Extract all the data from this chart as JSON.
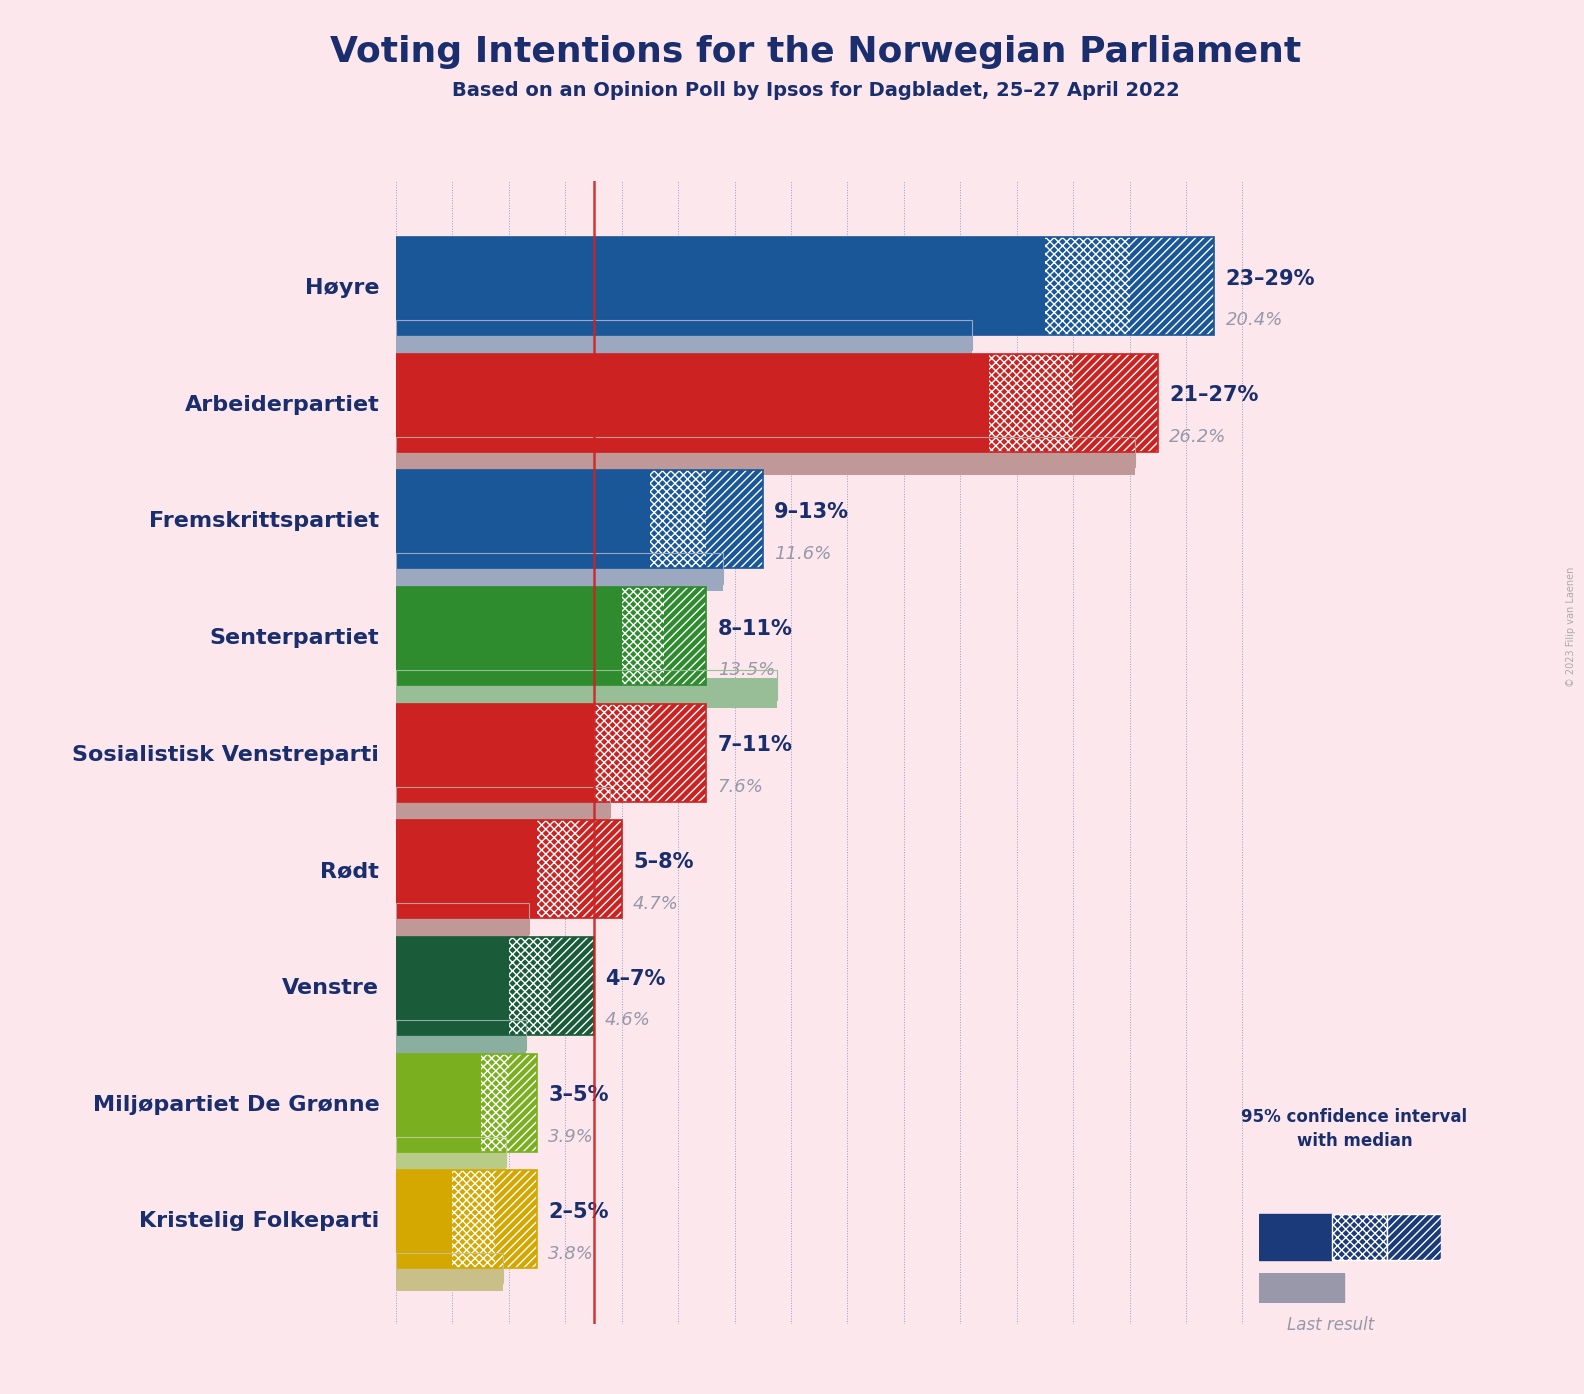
{
  "title": "Voting Intentions for the Norwegian Parliament",
  "subtitle": "Based on an Opinion Poll by Ipsos for Dagbladet, 25–27 April 2022",
  "copyright": "© 2023 Filip van Laenen",
  "background_color": "#fce8ec",
  "title_color": "#1a2e6e",
  "subtitle_color": "#1a2e6e",
  "parties": [
    {
      "name": "Høyre",
      "ci_low": 23,
      "median": 26,
      "ci_high": 29,
      "last_result": 20.4,
      "label": "23–29%",
      "last_label": "20.4%",
      "color": "#1a5799",
      "last_color": "#9ba8c0"
    },
    {
      "name": "Arbeiderpartiet",
      "ci_low": 21,
      "median": 24,
      "ci_high": 27,
      "last_result": 26.2,
      "label": "21–27%",
      "last_label": "26.2%",
      "color": "#cc2222",
      "last_color": "#c09898"
    },
    {
      "name": "Fremskrittspartiet",
      "ci_low": 9,
      "median": 11,
      "ci_high": 13,
      "last_result": 11.6,
      "label": "9–13%",
      "last_label": "11.6%",
      "color": "#1a5799",
      "last_color": "#9ba8c0"
    },
    {
      "name": "Senterpartiet",
      "ci_low": 8,
      "median": 9.5,
      "ci_high": 11,
      "last_result": 13.5,
      "label": "8–11%",
      "last_label": "13.5%",
      "color": "#2e8b2e",
      "last_color": "#98be98"
    },
    {
      "name": "Sosialistisk Venstreparti",
      "ci_low": 7,
      "median": 9,
      "ci_high": 11,
      "last_result": 7.6,
      "label": "7–11%",
      "last_label": "7.6%",
      "color": "#cc2222",
      "last_color": "#c09898"
    },
    {
      "name": "Rødt",
      "ci_low": 5,
      "median": 6.5,
      "ci_high": 8,
      "last_result": 4.7,
      "label": "5–8%",
      "last_label": "4.7%",
      "color": "#cc2222",
      "last_color": "#c09898"
    },
    {
      "name": "Venstre",
      "ci_low": 4,
      "median": 5.5,
      "ci_high": 7,
      "last_result": 4.6,
      "label": "4–7%",
      "last_label": "4.6%",
      "color": "#1a5c3a",
      "last_color": "#8aafa0"
    },
    {
      "name": "Miljøpartiet De Grønne",
      "ci_low": 3,
      "median": 4,
      "ci_high": 5,
      "last_result": 3.9,
      "label": "3–5%",
      "last_label": "3.9%",
      "color": "#7ab020",
      "last_color": "#b8cc88"
    },
    {
      "name": "Kristelig Folkeparti",
      "ci_low": 2,
      "median": 3.5,
      "ci_high": 5,
      "last_result": 3.8,
      "label": "2–5%",
      "last_label": "3.8%",
      "color": "#d4a800",
      "last_color": "#c8c088"
    }
  ],
  "xlim": [
    0,
    32
  ],
  "grid_interval": 2,
  "red_line_x": 7,
  "label_color": "#1a2e6e",
  "last_label_color": "#9898aa",
  "legend_ci_color": "#1a3a7a",
  "legend_last_color": "#9898aa"
}
